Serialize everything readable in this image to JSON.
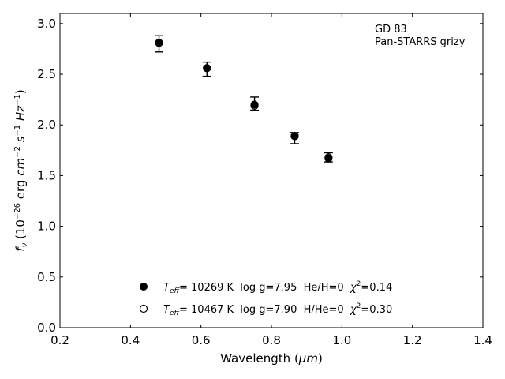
{
  "chart_data": {
    "type": "scatter",
    "xlim": [
      0.2,
      1.4
    ],
    "ylim": [
      0.0,
      3.1
    ],
    "x_ticks": [
      "0.2",
      "0.4",
      "0.6",
      "0.8",
      "1.0",
      "1.2",
      "1.4"
    ],
    "y_ticks": [
      "0.0",
      "0.5",
      "1.0",
      "1.5",
      "2.0",
      "2.5",
      "3.0"
    ],
    "xlabel_text": "Wavelength (",
    "xlabel_unit": "μm",
    "xlabel_close": ")",
    "ylabel_f": "f",
    "ylabel_nu": "ν",
    "ylabel_open": " (10",
    "ylabel_exp1": "−26",
    "ylabel_erg": " erg ",
    "ylabel_cm": "cm",
    "ylabel_exp2": "−2",
    "ylabel_s": " s",
    "ylabel_exp3": "−1",
    "ylabel_hz": " Hz",
    "ylabel_exp4": "−1",
    "ylabel_close": ")",
    "annotation": [
      "GD 83",
      "Pan-STARRS grizy"
    ],
    "grid": false,
    "observed": {
      "x": [
        0.481,
        0.617,
        0.752,
        0.866,
        0.962
      ],
      "y": [
        2.8,
        2.55,
        2.21,
        1.87,
        1.68
      ],
      "yerr": [
        0.08,
        0.07,
        0.065,
        0.055,
        0.045
      ]
    },
    "series": [
      {
        "marker": "filled",
        "x": [
          0.481,
          0.617,
          0.752,
          0.866,
          0.962
        ],
        "y": [
          2.81,
          2.56,
          2.2,
          1.89,
          1.67
        ]
      },
      {
        "marker": "open",
        "x": [
          0.481,
          0.617,
          0.752,
          0.866,
          0.962
        ],
        "y": [
          2.81,
          2.56,
          2.19,
          1.89,
          1.68
        ]
      }
    ],
    "legend": [
      {
        "marker": "filled",
        "T": "T",
        "eff": "eff",
        "text": "= 10269 K  log g=7.95  He/H=0  ",
        "chi": "χ",
        "chi_exp": "2",
        "chi_val": "=0.14"
      },
      {
        "marker": "open",
        "T": "T",
        "eff": "eff",
        "text": "= 10467 K  log g=7.90  H/He=0  ",
        "chi": "χ",
        "chi_exp": "2",
        "chi_val": "=0.30"
      }
    ],
    "legend_placement": "lower-center",
    "colors": {
      "marker": "#000000",
      "open_fill": "#ffffff",
      "axes": "#000000"
    }
  }
}
